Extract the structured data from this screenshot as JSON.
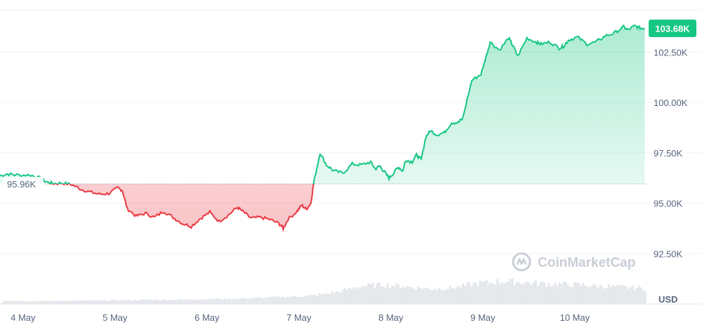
{
  "chart_data": {
    "type": "line",
    "title": "",
    "unit_label": "USD",
    "watermark": "CoinMarketCap",
    "x_ticks": [
      "4 May",
      "5 May",
      "6 May",
      "7 May",
      "8 May",
      "9 May",
      "10 May"
    ],
    "y_ticks": [
      "92.50K",
      "95.00K",
      "97.50K",
      "100.00K",
      "102.50K"
    ],
    "y_tick_values": [
      92.5,
      95.0,
      97.5,
      100.0,
      102.5
    ],
    "ylim": [
      90.0,
      104.6
    ],
    "xlim": [
      0,
      7
    ],
    "x_units": "days since 4 May 00:00",
    "y_units": "thousand USD",
    "reference": {
      "value": 95.96,
      "label": "95.96K"
    },
    "current": {
      "value": 103.68,
      "label": "103.68K"
    },
    "colors": {
      "up": "#16c784",
      "down": "#ea3943",
      "badge": "#16c784",
      "grid": "#eff2f5",
      "volume": "#e3e6ea"
    },
    "series": [
      {
        "name": "Price",
        "points": [
          [
            -0.05,
            96.35
          ],
          [
            0.05,
            96.45
          ],
          [
            0.15,
            96.4
          ],
          [
            0.3,
            96.4
          ],
          [
            0.4,
            96.25
          ],
          [
            0.48,
            96.05
          ],
          [
            0.55,
            95.98
          ],
          [
            0.65,
            96.0
          ],
          [
            0.75,
            95.92
          ],
          [
            0.85,
            95.7
          ],
          [
            0.95,
            95.55
          ],
          [
            1.05,
            95.45
          ],
          [
            1.15,
            95.48
          ],
          [
            1.25,
            95.75
          ],
          [
            1.3,
            95.65
          ],
          [
            1.35,
            94.75
          ],
          [
            1.45,
            94.35
          ],
          [
            1.55,
            94.5
          ],
          [
            1.65,
            94.3
          ],
          [
            1.75,
            94.6
          ],
          [
            1.85,
            94.3
          ],
          [
            1.95,
            94.0
          ],
          [
            2.05,
            93.85
          ],
          [
            2.15,
            94.25
          ],
          [
            2.25,
            94.55
          ],
          [
            2.35,
            94.1
          ],
          [
            2.45,
            94.4
          ],
          [
            2.55,
            94.8
          ],
          [
            2.62,
            94.55
          ],
          [
            2.7,
            94.25
          ],
          [
            2.8,
            94.3
          ],
          [
            2.9,
            94.2
          ],
          [
            3.0,
            94.0
          ],
          [
            3.05,
            93.75
          ],
          [
            3.1,
            94.2
          ],
          [
            3.2,
            94.6
          ],
          [
            3.25,
            94.9
          ],
          [
            3.3,
            94.7
          ],
          [
            3.35,
            95.0
          ],
          [
            3.38,
            96.0
          ],
          [
            3.45,
            97.5
          ],
          [
            3.52,
            96.9
          ],
          [
            3.6,
            96.6
          ],
          [
            3.7,
            96.5
          ],
          [
            3.8,
            96.95
          ],
          [
            3.9,
            96.9
          ],
          [
            4.0,
            97.05
          ],
          [
            4.05,
            96.7
          ],
          [
            4.1,
            96.85
          ],
          [
            4.15,
            96.55
          ],
          [
            4.2,
            96.25
          ],
          [
            4.25,
            96.5
          ],
          [
            4.3,
            96.8
          ],
          [
            4.35,
            96.6
          ],
          [
            4.38,
            97.15
          ],
          [
            4.45,
            97.05
          ],
          [
            4.5,
            97.4
          ],
          [
            4.55,
            97.15
          ],
          [
            4.6,
            98.3
          ],
          [
            4.65,
            98.6
          ],
          [
            4.72,
            98.4
          ],
          [
            4.8,
            98.5
          ],
          [
            4.88,
            99.0
          ],
          [
            4.95,
            99.0
          ],
          [
            5.0,
            99.2
          ],
          [
            5.1,
            101.1
          ],
          [
            5.2,
            101.4
          ],
          [
            5.25,
            102.2
          ],
          [
            5.3,
            103.0
          ],
          [
            5.4,
            102.6
          ],
          [
            5.5,
            103.2
          ],
          [
            5.55,
            102.8
          ],
          [
            5.6,
            102.3
          ],
          [
            5.7,
            103.2
          ],
          [
            5.8,
            103.0
          ],
          [
            5.85,
            102.9
          ],
          [
            5.95,
            103.0
          ],
          [
            6.05,
            102.7
          ],
          [
            6.1,
            102.8
          ],
          [
            6.15,
            103.1
          ],
          [
            6.25,
            103.25
          ],
          [
            6.35,
            102.9
          ],
          [
            6.45,
            103.0
          ],
          [
            6.55,
            103.3
          ],
          [
            6.65,
            103.45
          ],
          [
            6.75,
            103.75
          ],
          [
            6.8,
            103.6
          ],
          [
            6.87,
            103.8
          ],
          [
            6.93,
            103.7
          ],
          [
            6.98,
            103.68
          ]
        ]
      },
      {
        "name": "Volume",
        "relative": [
          0.08,
          0.07,
          0.07,
          0.08,
          0.08,
          0.09,
          0.1,
          0.1,
          0.11,
          0.12,
          0.13,
          0.15,
          0.17,
          0.2,
          0.28,
          0.42,
          0.46,
          0.41,
          0.36,
          0.39,
          0.5,
          0.54,
          0.51,
          0.48,
          0.46,
          0.43,
          0.4,
          0.37
        ]
      }
    ]
  }
}
